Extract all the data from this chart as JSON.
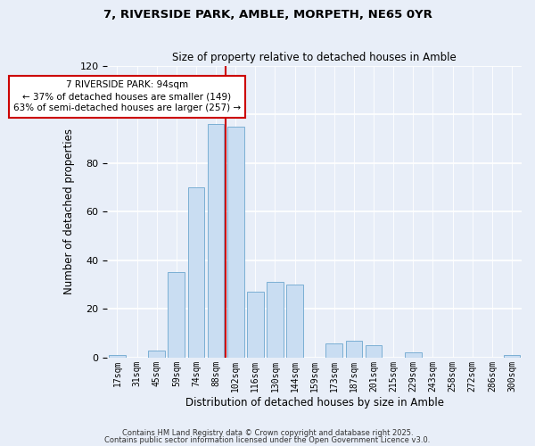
{
  "title": "7, RIVERSIDE PARK, AMBLE, MORPETH, NE65 0YR",
  "subtitle": "Size of property relative to detached houses in Amble",
  "xlabel": "Distribution of detached houses by size in Amble",
  "ylabel": "Number of detached properties",
  "bar_labels": [
    "17sqm",
    "31sqm",
    "45sqm",
    "59sqm",
    "74sqm",
    "88sqm",
    "102sqm",
    "116sqm",
    "130sqm",
    "144sqm",
    "159sqm",
    "173sqm",
    "187sqm",
    "201sqm",
    "215sqm",
    "229sqm",
    "243sqm",
    "258sqm",
    "272sqm",
    "286sqm",
    "300sqm"
  ],
  "bar_values": [
    1,
    0,
    3,
    35,
    70,
    96,
    95,
    27,
    31,
    30,
    0,
    6,
    7,
    5,
    0,
    2,
    0,
    0,
    0,
    0,
    1
  ],
  "bar_color": "#c9ddf2",
  "bar_edge_color": "#7bafd4",
  "marker_line_color": "#cc0000",
  "ylim": [
    0,
    120
  ],
  "yticks": [
    0,
    20,
    40,
    60,
    80,
    100,
    120
  ],
  "annotation_title": "7 RIVERSIDE PARK: 94sqm",
  "annotation_line1": "← 37% of detached houses are smaller (149)",
  "annotation_line2": "63% of semi-detached houses are larger (257) →",
  "background_color": "#e8eef8",
  "plot_bg_color": "#e8eef8",
  "grid_color": "#ffffff",
  "footer1": "Contains HM Land Registry data © Crown copyright and database right 2025.",
  "footer2": "Contains public sector information licensed under the Open Government Licence v3.0."
}
